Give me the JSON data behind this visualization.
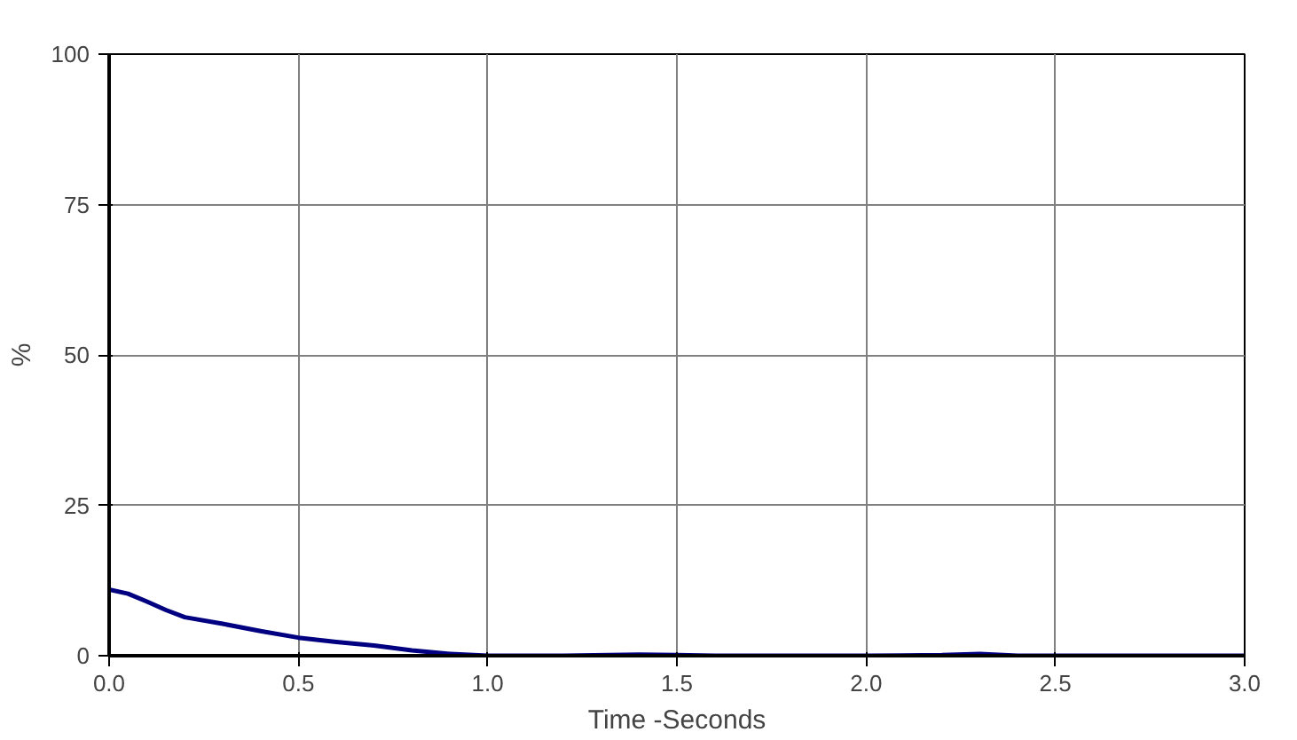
{
  "chart_data": {
    "type": "line",
    "xlabel": "Time -Seconds",
    "ylabel": "%",
    "x": [
      0.0,
      0.05,
      0.1,
      0.15,
      0.2,
      0.3,
      0.4,
      0.5,
      0.6,
      0.7,
      0.8,
      0.9,
      1.0,
      1.2,
      1.4,
      1.6,
      1.8,
      2.0,
      2.2,
      2.3,
      2.4,
      2.6,
      2.8,
      3.0
    ],
    "series": [
      {
        "color": "#000080",
        "values": [
          11,
          10.3,
          9,
          7.6,
          6.4,
          5.3,
          4.1,
          3.0,
          2.3,
          1.7,
          0.9,
          0.3,
          0,
          0,
          0.2,
          0,
          0,
          0,
          0.1,
          0.3,
          0,
          0,
          0,
          0
        ]
      }
    ],
    "xlim": [
      0,
      3
    ],
    "ylim": [
      0,
      100
    ],
    "xticks": [
      {
        "value": 0,
        "label": "0.0"
      },
      {
        "value": 0.5,
        "label": "0.5"
      },
      {
        "value": 1,
        "label": "1.0"
      },
      {
        "value": 1.5,
        "label": "1.5"
      },
      {
        "value": 2,
        "label": "2.0"
      },
      {
        "value": 2.5,
        "label": "2.5"
      },
      {
        "value": 3,
        "label": "3.0"
      }
    ],
    "yticks": [
      0,
      25,
      50,
      75,
      100
    ],
    "grid": true,
    "line_style": "solid",
    "marker": "none"
  }
}
